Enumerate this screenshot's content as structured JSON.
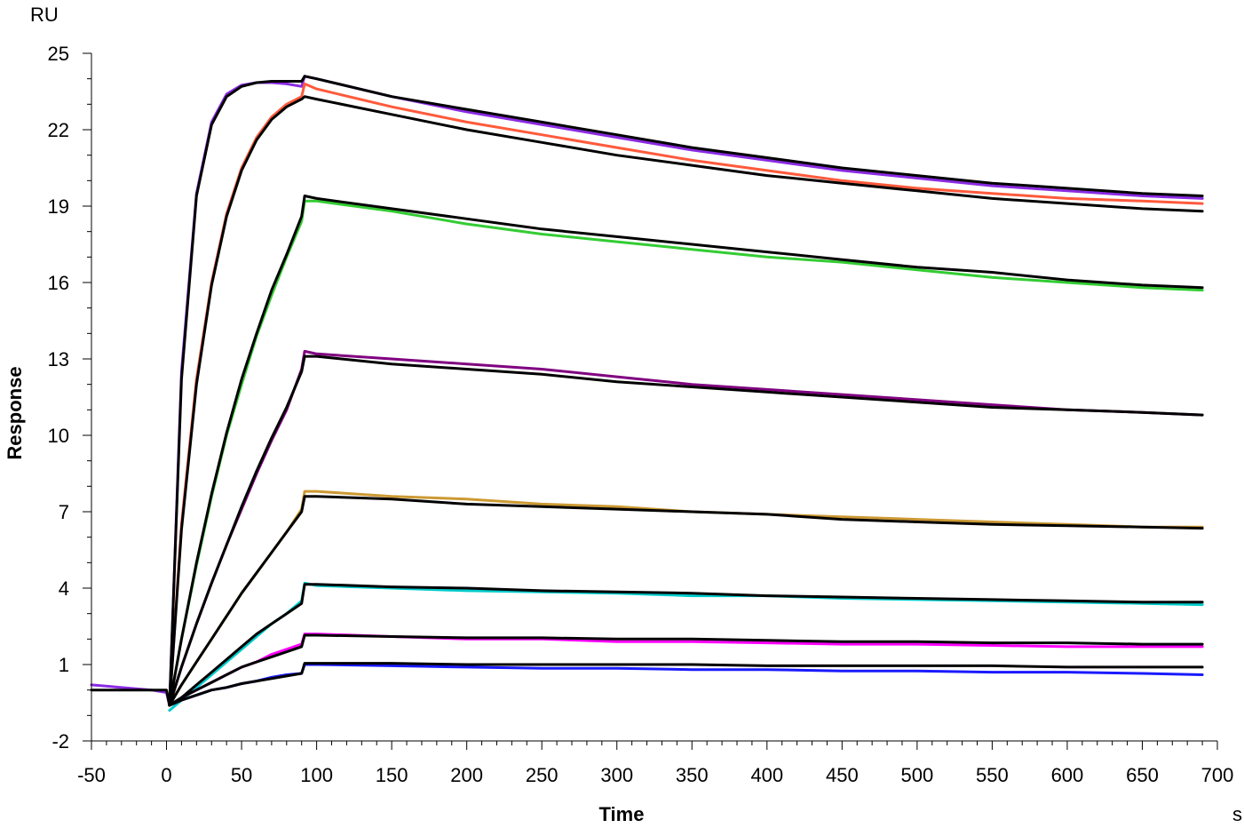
{
  "chart_data": {
    "type": "line",
    "title": "",
    "xlabel": "Time",
    "ylabel": "Response",
    "x_unit": "s",
    "y_unit": "RU",
    "xlim": [
      -50,
      700
    ],
    "ylim": [
      -2,
      25
    ],
    "x_ticks": [
      -50,
      0,
      50,
      100,
      150,
      200,
      250,
      300,
      350,
      400,
      450,
      500,
      550,
      600,
      650,
      700
    ],
    "y_ticks": [
      -2,
      1,
      4,
      7,
      10,
      13,
      16,
      19,
      22,
      25
    ],
    "x_tick_labels": [
      "-50",
      "0",
      "50",
      "100",
      "150",
      "200",
      "250",
      "300",
      "350",
      "400",
      "450",
      "500",
      "550",
      "600",
      "650",
      "700"
    ],
    "y_tick_labels": [
      "-2",
      "1",
      "4",
      "7",
      "10",
      "13",
      "16",
      "19",
      "22",
      "25"
    ],
    "grid": false,
    "legend": "none",
    "association_end": 90,
    "series": [
      {
        "color": "#8a2be2",
        "x": [
          -50,
          -10,
          0,
          2,
          10,
          20,
          30,
          40,
          50,
          60,
          70,
          80,
          90,
          92,
          100,
          150,
          200,
          250,
          300,
          350,
          400,
          450,
          500,
          550,
          600,
          650,
          690
        ],
        "y": [
          0.2,
          0.0,
          -0.1,
          -0.6,
          12.5,
          19.5,
          22.3,
          23.4,
          23.75,
          23.85,
          23.85,
          23.8,
          23.7,
          24.1,
          24.0,
          23.3,
          22.7,
          22.2,
          21.7,
          21.2,
          20.8,
          20.4,
          20.1,
          19.8,
          19.6,
          19.4,
          19.3
        ]
      },
      {
        "color": "#ff5a3c",
        "x": [
          2,
          10,
          20,
          30,
          40,
          50,
          60,
          70,
          80,
          90,
          92,
          100,
          150,
          200,
          250,
          300,
          350,
          400,
          450,
          500,
          550,
          600,
          650,
          690
        ],
        "y": [
          -0.6,
          6.5,
          12.2,
          16.0,
          18.7,
          20.5,
          21.7,
          22.5,
          23.0,
          23.3,
          23.8,
          23.6,
          22.9,
          22.3,
          21.8,
          21.3,
          20.8,
          20.4,
          20.0,
          19.7,
          19.5,
          19.3,
          19.2,
          19.1
        ]
      },
      {
        "color": "#33cc33",
        "x": [
          2,
          10,
          20,
          30,
          40,
          50,
          60,
          70,
          80,
          90,
          92,
          100,
          150,
          200,
          250,
          300,
          350,
          400,
          450,
          500,
          550,
          600,
          650,
          690
        ],
        "y": [
          -0.6,
          2.0,
          4.9,
          7.6,
          10.0,
          12.0,
          13.9,
          15.5,
          17.0,
          18.4,
          19.2,
          19.2,
          18.8,
          18.3,
          17.9,
          17.6,
          17.3,
          17.0,
          16.8,
          16.5,
          16.2,
          16.0,
          15.8,
          15.7
        ]
      },
      {
        "color": "#800080",
        "x": [
          2,
          10,
          20,
          30,
          40,
          50,
          60,
          70,
          80,
          90,
          92,
          100,
          150,
          200,
          250,
          300,
          350,
          400,
          450,
          500,
          550,
          600,
          650,
          690
        ],
        "y": [
          -0.6,
          0.9,
          2.6,
          4.2,
          5.7,
          7.1,
          8.5,
          9.8,
          11.0,
          12.6,
          13.3,
          13.2,
          13.0,
          12.8,
          12.6,
          12.3,
          12.0,
          11.8,
          11.6,
          11.4,
          11.2,
          11.0,
          10.9,
          10.8
        ]
      },
      {
        "color": "#cc9933",
        "x": [
          2,
          10,
          20,
          30,
          40,
          50,
          60,
          70,
          80,
          90,
          92,
          100,
          150,
          200,
          250,
          300,
          350,
          400,
          450,
          500,
          550,
          600,
          650,
          690
        ],
        "y": [
          -0.6,
          0.2,
          1.1,
          2.0,
          2.9,
          3.8,
          4.6,
          5.4,
          6.2,
          7.1,
          7.8,
          7.8,
          7.6,
          7.5,
          7.3,
          7.2,
          7.0,
          6.9,
          6.8,
          6.7,
          6.6,
          6.5,
          6.4,
          6.4
        ]
      },
      {
        "color": "#00cccc",
        "x": [
          2,
          10,
          20,
          30,
          40,
          50,
          60,
          70,
          80,
          90,
          92,
          100,
          150,
          200,
          250,
          300,
          350,
          400,
          450,
          500,
          550,
          600,
          650,
          690
        ],
        "y": [
          -0.8,
          -0.4,
          0.1,
          0.6,
          1.1,
          1.6,
          2.1,
          2.6,
          3.0,
          3.5,
          4.2,
          4.1,
          4.0,
          3.9,
          3.85,
          3.8,
          3.7,
          3.7,
          3.6,
          3.55,
          3.5,
          3.45,
          3.4,
          3.35
        ]
      },
      {
        "color": "#ff00ff",
        "x": [
          2,
          10,
          20,
          30,
          40,
          50,
          60,
          70,
          80,
          90,
          92,
          100,
          150,
          200,
          250,
          300,
          350,
          400,
          450,
          500,
          550,
          600,
          650,
          690
        ],
        "y": [
          -0.6,
          -0.3,
          0.0,
          0.3,
          0.6,
          0.9,
          1.1,
          1.4,
          1.6,
          1.8,
          2.2,
          2.2,
          2.1,
          2.0,
          2.0,
          1.9,
          1.9,
          1.85,
          1.8,
          1.8,
          1.75,
          1.7,
          1.7,
          1.7
        ]
      },
      {
        "color": "#1a1aff",
        "x": [
          2,
          10,
          20,
          30,
          40,
          50,
          60,
          70,
          80,
          90,
          92,
          100,
          150,
          200,
          250,
          300,
          350,
          400,
          450,
          500,
          550,
          600,
          650,
          690
        ],
        "y": [
          -0.6,
          -0.4,
          -0.2,
          0.0,
          0.1,
          0.25,
          0.35,
          0.5,
          0.6,
          0.65,
          1.0,
          1.0,
          0.95,
          0.9,
          0.85,
          0.85,
          0.8,
          0.8,
          0.75,
          0.75,
          0.7,
          0.7,
          0.65,
          0.6
        ]
      },
      {
        "color": "#000000",
        "x": [
          -50,
          0,
          2,
          10,
          20,
          30,
          40,
          50,
          60,
          70,
          80,
          90,
          92,
          100,
          150,
          200,
          250,
          300,
          350,
          400,
          450,
          500,
          550,
          600,
          650,
          690
        ],
        "y": [
          0.0,
          0.0,
          -0.6,
          12.2,
          19.4,
          22.2,
          23.3,
          23.7,
          23.85,
          23.9,
          23.9,
          23.9,
          24.1,
          24.0,
          23.3,
          22.8,
          22.3,
          21.8,
          21.3,
          20.9,
          20.5,
          20.2,
          19.9,
          19.7,
          19.5,
          19.4
        ]
      },
      {
        "color": "#000000",
        "x": [
          2,
          10,
          20,
          30,
          40,
          50,
          60,
          70,
          80,
          90,
          92,
          100,
          150,
          200,
          250,
          300,
          350,
          400,
          450,
          500,
          550,
          600,
          650,
          690
        ],
        "y": [
          -0.6,
          6.3,
          12.0,
          15.9,
          18.6,
          20.4,
          21.6,
          22.4,
          22.9,
          23.2,
          23.3,
          23.2,
          22.6,
          22.0,
          21.5,
          21.0,
          20.6,
          20.2,
          19.9,
          19.6,
          19.3,
          19.1,
          18.9,
          18.8
        ]
      },
      {
        "color": "#000000",
        "x": [
          2,
          10,
          20,
          30,
          40,
          50,
          60,
          70,
          80,
          90,
          92,
          100,
          150,
          200,
          250,
          300,
          350,
          400,
          450,
          500,
          550,
          600,
          650,
          690
        ],
        "y": [
          -0.6,
          2.0,
          5.0,
          7.7,
          10.1,
          12.2,
          14.0,
          15.7,
          17.1,
          18.6,
          19.4,
          19.3,
          18.9,
          18.5,
          18.1,
          17.8,
          17.5,
          17.2,
          16.9,
          16.6,
          16.4,
          16.1,
          15.9,
          15.8
        ]
      },
      {
        "color": "#000000",
        "x": [
          2,
          10,
          20,
          30,
          40,
          50,
          60,
          70,
          80,
          90,
          92,
          100,
          150,
          200,
          250,
          300,
          350,
          400,
          450,
          500,
          550,
          600,
          650,
          690
        ],
        "y": [
          -0.6,
          0.9,
          2.6,
          4.2,
          5.7,
          7.2,
          8.6,
          9.9,
          11.1,
          12.5,
          13.1,
          13.1,
          12.8,
          12.6,
          12.4,
          12.1,
          11.9,
          11.7,
          11.5,
          11.3,
          11.1,
          11.0,
          10.9,
          10.8
        ]
      },
      {
        "color": "#000000",
        "x": [
          2,
          10,
          20,
          30,
          40,
          50,
          60,
          70,
          80,
          90,
          92,
          100,
          150,
          200,
          250,
          300,
          350,
          400,
          450,
          500,
          550,
          600,
          650,
          690
        ],
        "y": [
          -0.6,
          0.2,
          1.1,
          2.0,
          2.9,
          3.8,
          4.6,
          5.4,
          6.2,
          7.0,
          7.6,
          7.6,
          7.5,
          7.3,
          7.2,
          7.1,
          7.0,
          6.9,
          6.7,
          6.6,
          6.5,
          6.45,
          6.4,
          6.35
        ]
      },
      {
        "color": "#000000",
        "x": [
          2,
          10,
          20,
          30,
          40,
          50,
          60,
          70,
          80,
          90,
          92,
          100,
          150,
          200,
          250,
          300,
          350,
          400,
          450,
          500,
          550,
          600,
          650,
          690
        ],
        "y": [
          -0.6,
          -0.3,
          0.2,
          0.7,
          1.2,
          1.7,
          2.2,
          2.6,
          3.0,
          3.4,
          4.15,
          4.15,
          4.05,
          4.0,
          3.9,
          3.85,
          3.8,
          3.7,
          3.65,
          3.6,
          3.55,
          3.5,
          3.45,
          3.45
        ]
      },
      {
        "color": "#000000",
        "x": [
          2,
          10,
          20,
          30,
          40,
          50,
          60,
          70,
          80,
          90,
          92,
          100,
          150,
          200,
          250,
          300,
          350,
          400,
          450,
          500,
          550,
          600,
          650,
          690
        ],
        "y": [
          -0.6,
          -0.3,
          0.0,
          0.3,
          0.6,
          0.9,
          1.1,
          1.3,
          1.5,
          1.7,
          2.15,
          2.15,
          2.1,
          2.05,
          2.05,
          2.0,
          2.0,
          1.95,
          1.9,
          1.9,
          1.85,
          1.85,
          1.8,
          1.8
        ]
      },
      {
        "color": "#000000",
        "x": [
          2,
          10,
          20,
          30,
          40,
          50,
          60,
          70,
          80,
          90,
          92,
          100,
          150,
          200,
          250,
          300,
          350,
          400,
          450,
          500,
          550,
          600,
          650,
          690
        ],
        "y": [
          -0.6,
          -0.4,
          -0.2,
          0.0,
          0.1,
          0.25,
          0.35,
          0.45,
          0.55,
          0.65,
          1.05,
          1.05,
          1.05,
          1.0,
          1.0,
          1.0,
          1.0,
          0.95,
          0.95,
          0.95,
          0.95,
          0.9,
          0.9,
          0.9
        ]
      }
    ]
  }
}
